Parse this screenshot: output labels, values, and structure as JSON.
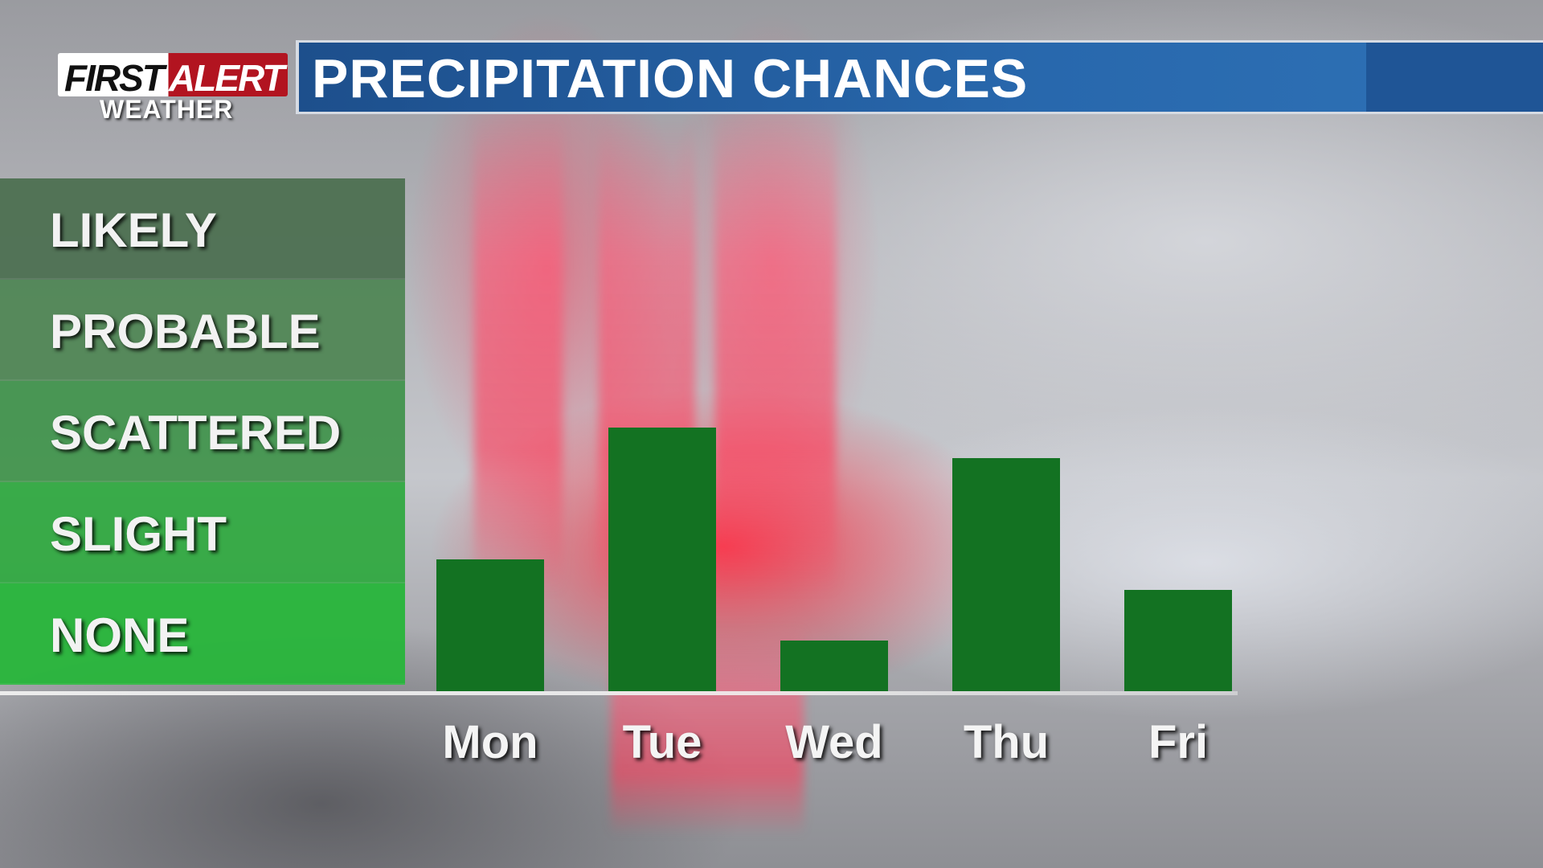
{
  "header": {
    "logo_first": "FIRST",
    "logo_alert": "ALERT",
    "logo_weather": "WEATHER",
    "title": "PRECIPITATION CHANCES"
  },
  "colors": {
    "bar": "#137222",
    "title_bar": "#2868ad",
    "logo_red": "#b21420",
    "band_likely": "#4a6e4e",
    "band_probable": "#4d8453",
    "band_scattered": "#3f934a",
    "band_slight": "#2ea83e",
    "band_none": "#27b53a"
  },
  "chart_data": {
    "type": "bar",
    "title": "PRECIPITATION CHANCES",
    "categories": [
      "Mon",
      "Tue",
      "Wed",
      "Thu",
      "Fri"
    ],
    "values": [
      1.3,
      2.6,
      0.5,
      2.3,
      1.0
    ],
    "y_levels": [
      "NONE",
      "SLIGHT",
      "SCATTERED",
      "PROBABLE",
      "LIKELY"
    ],
    "ylim": [
      0,
      5
    ],
    "grid": false,
    "legend": "none"
  }
}
